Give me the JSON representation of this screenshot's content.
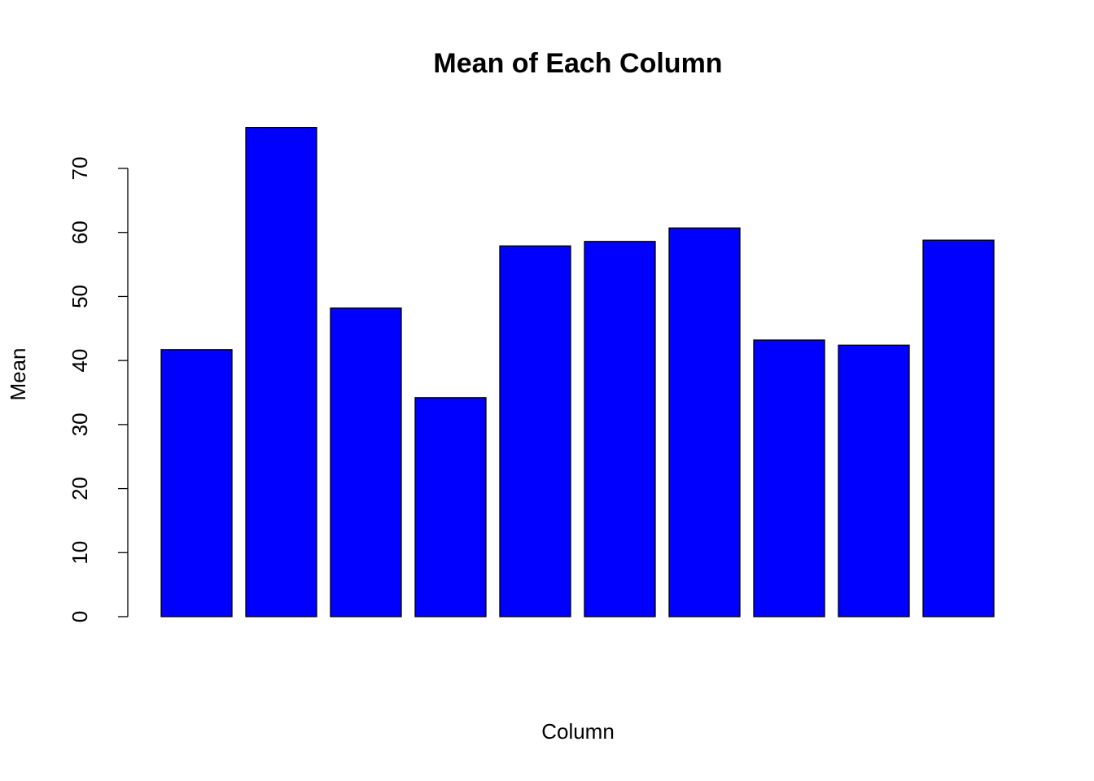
{
  "chart_data": {
    "type": "bar",
    "title": "Mean of Each Column",
    "x_label": "Column",
    "y_label": "Mean",
    "categories": [
      null,
      null,
      null,
      null,
      null,
      null,
      null,
      null,
      null,
      null
    ],
    "values": [
      41.7,
      76.4,
      48.2,
      34.2,
      57.9,
      58.6,
      60.7,
      43.2,
      42.4,
      58.8
    ],
    "color": "#0000ff",
    "ylim": [
      0,
      80
    ],
    "yticks": [
      0,
      10,
      20,
      30,
      40,
      50,
      60,
      70
    ],
    "grid": false
  }
}
